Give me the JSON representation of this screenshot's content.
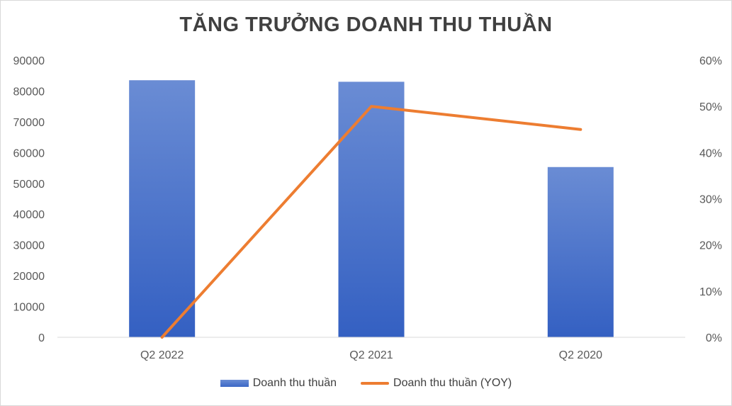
{
  "chart_data": {
    "type": "bar",
    "title": "TĂNG TRƯỞNG DOANH THU THUẦN",
    "categories": [
      "Q2 2022",
      "Q2 2021",
      "Q2 2020"
    ],
    "series": [
      {
        "name": "Doanh thu thuần",
        "type": "bar",
        "axis": "left",
        "values": [
          83500,
          83000,
          55300
        ],
        "color": "#4472c4"
      },
      {
        "name": "Doanh thu thuần (YOY)",
        "type": "line",
        "axis": "right",
        "values": [
          0,
          0.5,
          0.45
        ],
        "color": "#ed7d31"
      }
    ],
    "ylim": [
      0,
      90000
    ],
    "yticks": [
      "0",
      "10000",
      "20000",
      "30000",
      "40000",
      "50000",
      "60000",
      "70000",
      "80000",
      "90000"
    ],
    "y2lim": [
      0,
      0.6
    ],
    "y2ticks": [
      "0%",
      "10%",
      "20%",
      "30%",
      "40%",
      "50%",
      "60%"
    ],
    "grid": false,
    "legend_position": "bottom"
  }
}
